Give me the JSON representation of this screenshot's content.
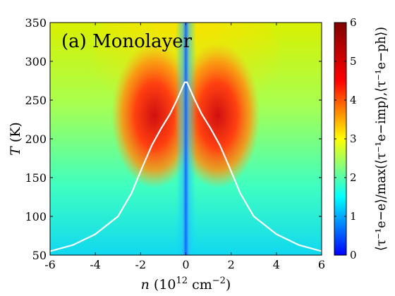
{
  "chart_data": {
    "type": "heatmap",
    "panel_label": "(a) Monolayer",
    "xlabel": {
      "var": "n",
      "unit": "(10",
      "exp": "12",
      "unit2": " cm",
      "unit_exp": "−2",
      "close": ")"
    },
    "ylabel": {
      "var": "T",
      "unit": "(K)"
    },
    "colorbar_label": "⟨τ⁻¹e−e⟩/max(⟨τ⁻¹e−imp⟩,⟨τ⁻¹e−ph⟩)",
    "xlim": [
      -6,
      6
    ],
    "ylim": [
      50,
      350
    ],
    "zlim": [
      0,
      6
    ],
    "colormap": "jet",
    "xticks": [
      -6,
      -4,
      -2,
      0,
      2,
      4,
      6
    ],
    "yticks": [
      50,
      100,
      150,
      200,
      250,
      300,
      350
    ],
    "cticks": [
      0,
      1,
      2,
      3,
      4,
      5,
      6
    ],
    "xtick_labels": [
      "-6",
      "-4",
      "-2",
      "0",
      "2",
      "4",
      "6"
    ],
    "ytick_labels": [
      "50",
      "100",
      "150",
      "200",
      "250",
      "300",
      "350"
    ],
    "ctick_labels": [
      "0",
      "1",
      "2",
      "3",
      "4",
      "5",
      "6"
    ],
    "z_samples": [
      {
        "n": -5.5,
        "T": 60,
        "z": 1.5
      },
      {
        "n": -5.5,
        "T": 340,
        "z": 3.0
      },
      {
        "n": -3,
        "T": 150,
        "z": 3.5
      },
      {
        "n": -1.5,
        "T": 225,
        "z": 5.6
      },
      {
        "n": 1.5,
        "T": 225,
        "z": 5.6
      },
      {
        "n": -0.8,
        "T": 280,
        "z": 4.8
      },
      {
        "n": -4,
        "T": 250,
        "z": 3.5
      },
      {
        "n": -1,
        "T": 80,
        "z": 1.8
      },
      {
        "n": 0,
        "T": 200,
        "z": 0.5
      },
      {
        "n": 4,
        "T": 320,
        "z": 3.0
      }
    ],
    "white_curve": {
      "n": [
        -6,
        -5,
        -4,
        -3,
        -2.4,
        -1.9,
        -1.5,
        -1.1,
        -0.7,
        -0.4,
        -0.2,
        -0.05,
        0.05,
        0.2,
        0.4,
        0.7,
        1.1,
        1.5,
        1.9,
        2.4,
        3,
        4,
        5,
        6
      ],
      "T": [
        55,
        63,
        77,
        100,
        130,
        165,
        192,
        213,
        232,
        250,
        263,
        273,
        273,
        263,
        250,
        232,
        213,
        192,
        165,
        130,
        100,
        77,
        63,
        55
      ]
    }
  }
}
